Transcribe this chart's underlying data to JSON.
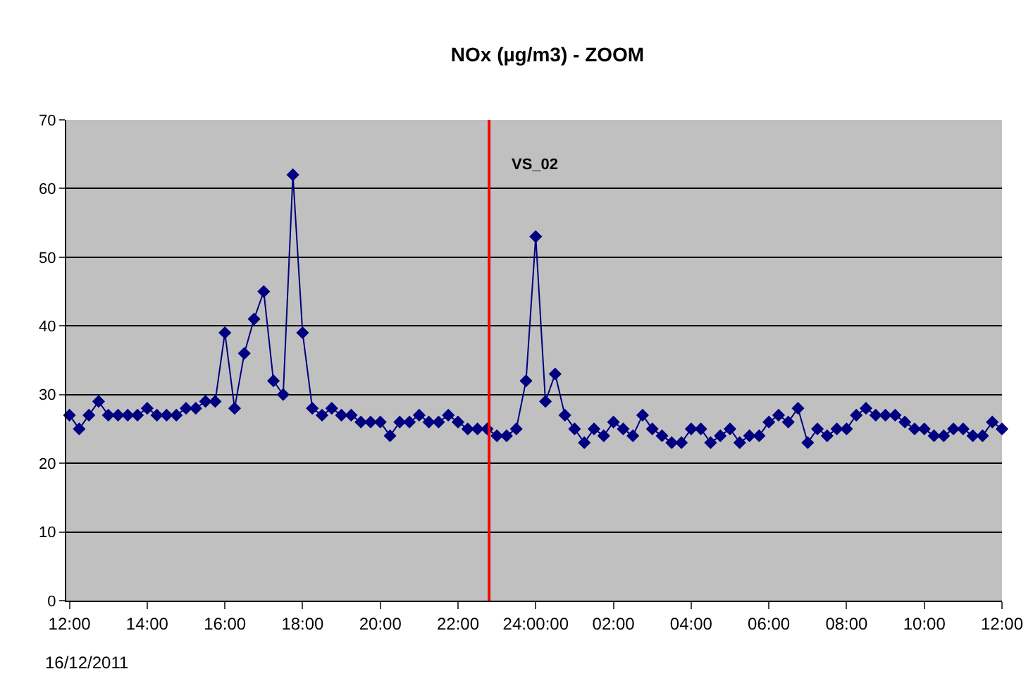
{
  "chart_data": {
    "type": "line",
    "title": "NOx (µg/m3) - ZOOM",
    "x": [
      "2011-12-16T12:00",
      "2011-12-16T12:15",
      "2011-12-16T12:30",
      "2011-12-16T12:45",
      "2011-12-16T13:00",
      "2011-12-16T13:15",
      "2011-12-16T13:30",
      "2011-12-16T13:45",
      "2011-12-16T14:00",
      "2011-12-16T14:15",
      "2011-12-16T14:30",
      "2011-12-16T14:45",
      "2011-12-16T15:00",
      "2011-12-16T15:15",
      "2011-12-16T15:30",
      "2011-12-16T15:45",
      "2011-12-16T16:00",
      "2011-12-16T16:15",
      "2011-12-16T16:30",
      "2011-12-16T16:45",
      "2011-12-16T17:00",
      "2011-12-16T17:15",
      "2011-12-16T17:30",
      "2011-12-16T17:45",
      "2011-12-16T18:00",
      "2011-12-16T18:15",
      "2011-12-16T18:30",
      "2011-12-16T18:45",
      "2011-12-16T19:00",
      "2011-12-16T19:15",
      "2011-12-16T19:30",
      "2011-12-16T19:45",
      "2011-12-16T20:00",
      "2011-12-16T20:15",
      "2011-12-16T20:30",
      "2011-12-16T20:45",
      "2011-12-16T21:00",
      "2011-12-16T21:15",
      "2011-12-16T21:30",
      "2011-12-16T21:45",
      "2011-12-16T22:00",
      "2011-12-16T22:15",
      "2011-12-16T22:30",
      "2011-12-16T22:45",
      "2011-12-16T23:00",
      "2011-12-16T23:15",
      "2011-12-16T23:30",
      "2011-12-16T23:45",
      "2011-12-17T00:00",
      "2011-12-17T00:15",
      "2011-12-17T00:30",
      "2011-12-17T00:45",
      "2011-12-17T01:00",
      "2011-12-17T01:15",
      "2011-12-17T01:30",
      "2011-12-17T01:45",
      "2011-12-17T02:00",
      "2011-12-17T02:15",
      "2011-12-17T02:30",
      "2011-12-17T02:45",
      "2011-12-17T03:00",
      "2011-12-17T03:15",
      "2011-12-17T03:30",
      "2011-12-17T03:45",
      "2011-12-17T04:00",
      "2011-12-17T04:15",
      "2011-12-17T04:30",
      "2011-12-17T04:45",
      "2011-12-17T05:00",
      "2011-12-17T05:15",
      "2011-12-17T05:30",
      "2011-12-17T05:45",
      "2011-12-17T06:00",
      "2011-12-17T06:15",
      "2011-12-17T06:30",
      "2011-12-17T06:45",
      "2011-12-17T07:00",
      "2011-12-17T07:15",
      "2011-12-17T07:30",
      "2011-12-17T07:45",
      "2011-12-17T08:00",
      "2011-12-17T08:15",
      "2011-12-17T08:30",
      "2011-12-17T08:45",
      "2011-12-17T09:00",
      "2011-12-17T09:15",
      "2011-12-17T09:30",
      "2011-12-17T09:45",
      "2011-12-17T10:00",
      "2011-12-17T10:15",
      "2011-12-17T10:30",
      "2011-12-17T10:45",
      "2011-12-17T11:00",
      "2011-12-17T11:15",
      "2011-12-17T11:30",
      "2011-12-17T11:45",
      "2011-12-17T12:00"
    ],
    "series": [
      {
        "color": "#000080",
        "values": [
          27,
          25,
          27,
          29,
          27,
          27,
          27,
          27,
          28,
          27,
          27,
          27,
          28,
          28,
          29,
          29,
          39,
          28,
          36,
          41,
          45,
          32,
          30,
          62,
          39,
          28,
          27,
          28,
          27,
          27,
          26,
          26,
          26,
          24,
          26,
          26,
          27,
          26,
          26,
          27,
          26,
          25,
          25,
          25,
          24,
          24,
          25,
          32,
          53,
          29,
          33,
          27,
          25,
          23,
          25,
          24,
          26,
          25,
          24,
          27,
          25,
          24,
          23,
          23,
          25,
          25,
          23,
          24,
          25,
          23,
          24,
          24,
          26,
          27,
          26,
          28,
          23,
          25,
          24,
          25,
          25,
          27,
          28,
          27,
          27,
          27,
          26,
          25,
          25,
          24,
          24,
          25,
          25,
          24,
          24,
          26,
          25
        ]
      }
    ],
    "xlim": [
      "2011-12-16T11:55",
      "2011-12-17T12:00"
    ],
    "xticks": [
      {
        "value": "2011-12-16T12:00",
        "label": "12:00"
      },
      {
        "value": "2011-12-16T14:00",
        "label": "14:00"
      },
      {
        "value": "2011-12-16T16:00",
        "label": "16:00"
      },
      {
        "value": "2011-12-16T18:00",
        "label": "18:00"
      },
      {
        "value": "2011-12-16T20:00",
        "label": "20:00"
      },
      {
        "value": "2011-12-16T22:00",
        "label": "22:00"
      },
      {
        "value": "2011-12-17T00:00",
        "label": "24:00:00"
      },
      {
        "value": "2011-12-17T02:00",
        "label": "02:00"
      },
      {
        "value": "2011-12-17T04:00",
        "label": "04:00"
      },
      {
        "value": "2011-12-17T06:00",
        "label": "06:00"
      },
      {
        "value": "2011-12-17T08:00",
        "label": "08:00"
      },
      {
        "value": "2011-12-17T10:00",
        "label": "10:00"
      },
      {
        "value": "2011-12-17T12:00",
        "label": "12:00"
      }
    ],
    "ylim": [
      0,
      70
    ],
    "yticks": [
      0,
      10,
      20,
      30,
      40,
      50,
      60,
      70
    ],
    "grid": "y",
    "marker": "diamond",
    "line_style": "solid",
    "ref_lines": [
      {
        "axis": "x",
        "value": "2011-12-16T22:48",
        "label": "VS_02",
        "color": "#ff0000"
      }
    ],
    "annotations": [
      "16/12/2011"
    ]
  }
}
